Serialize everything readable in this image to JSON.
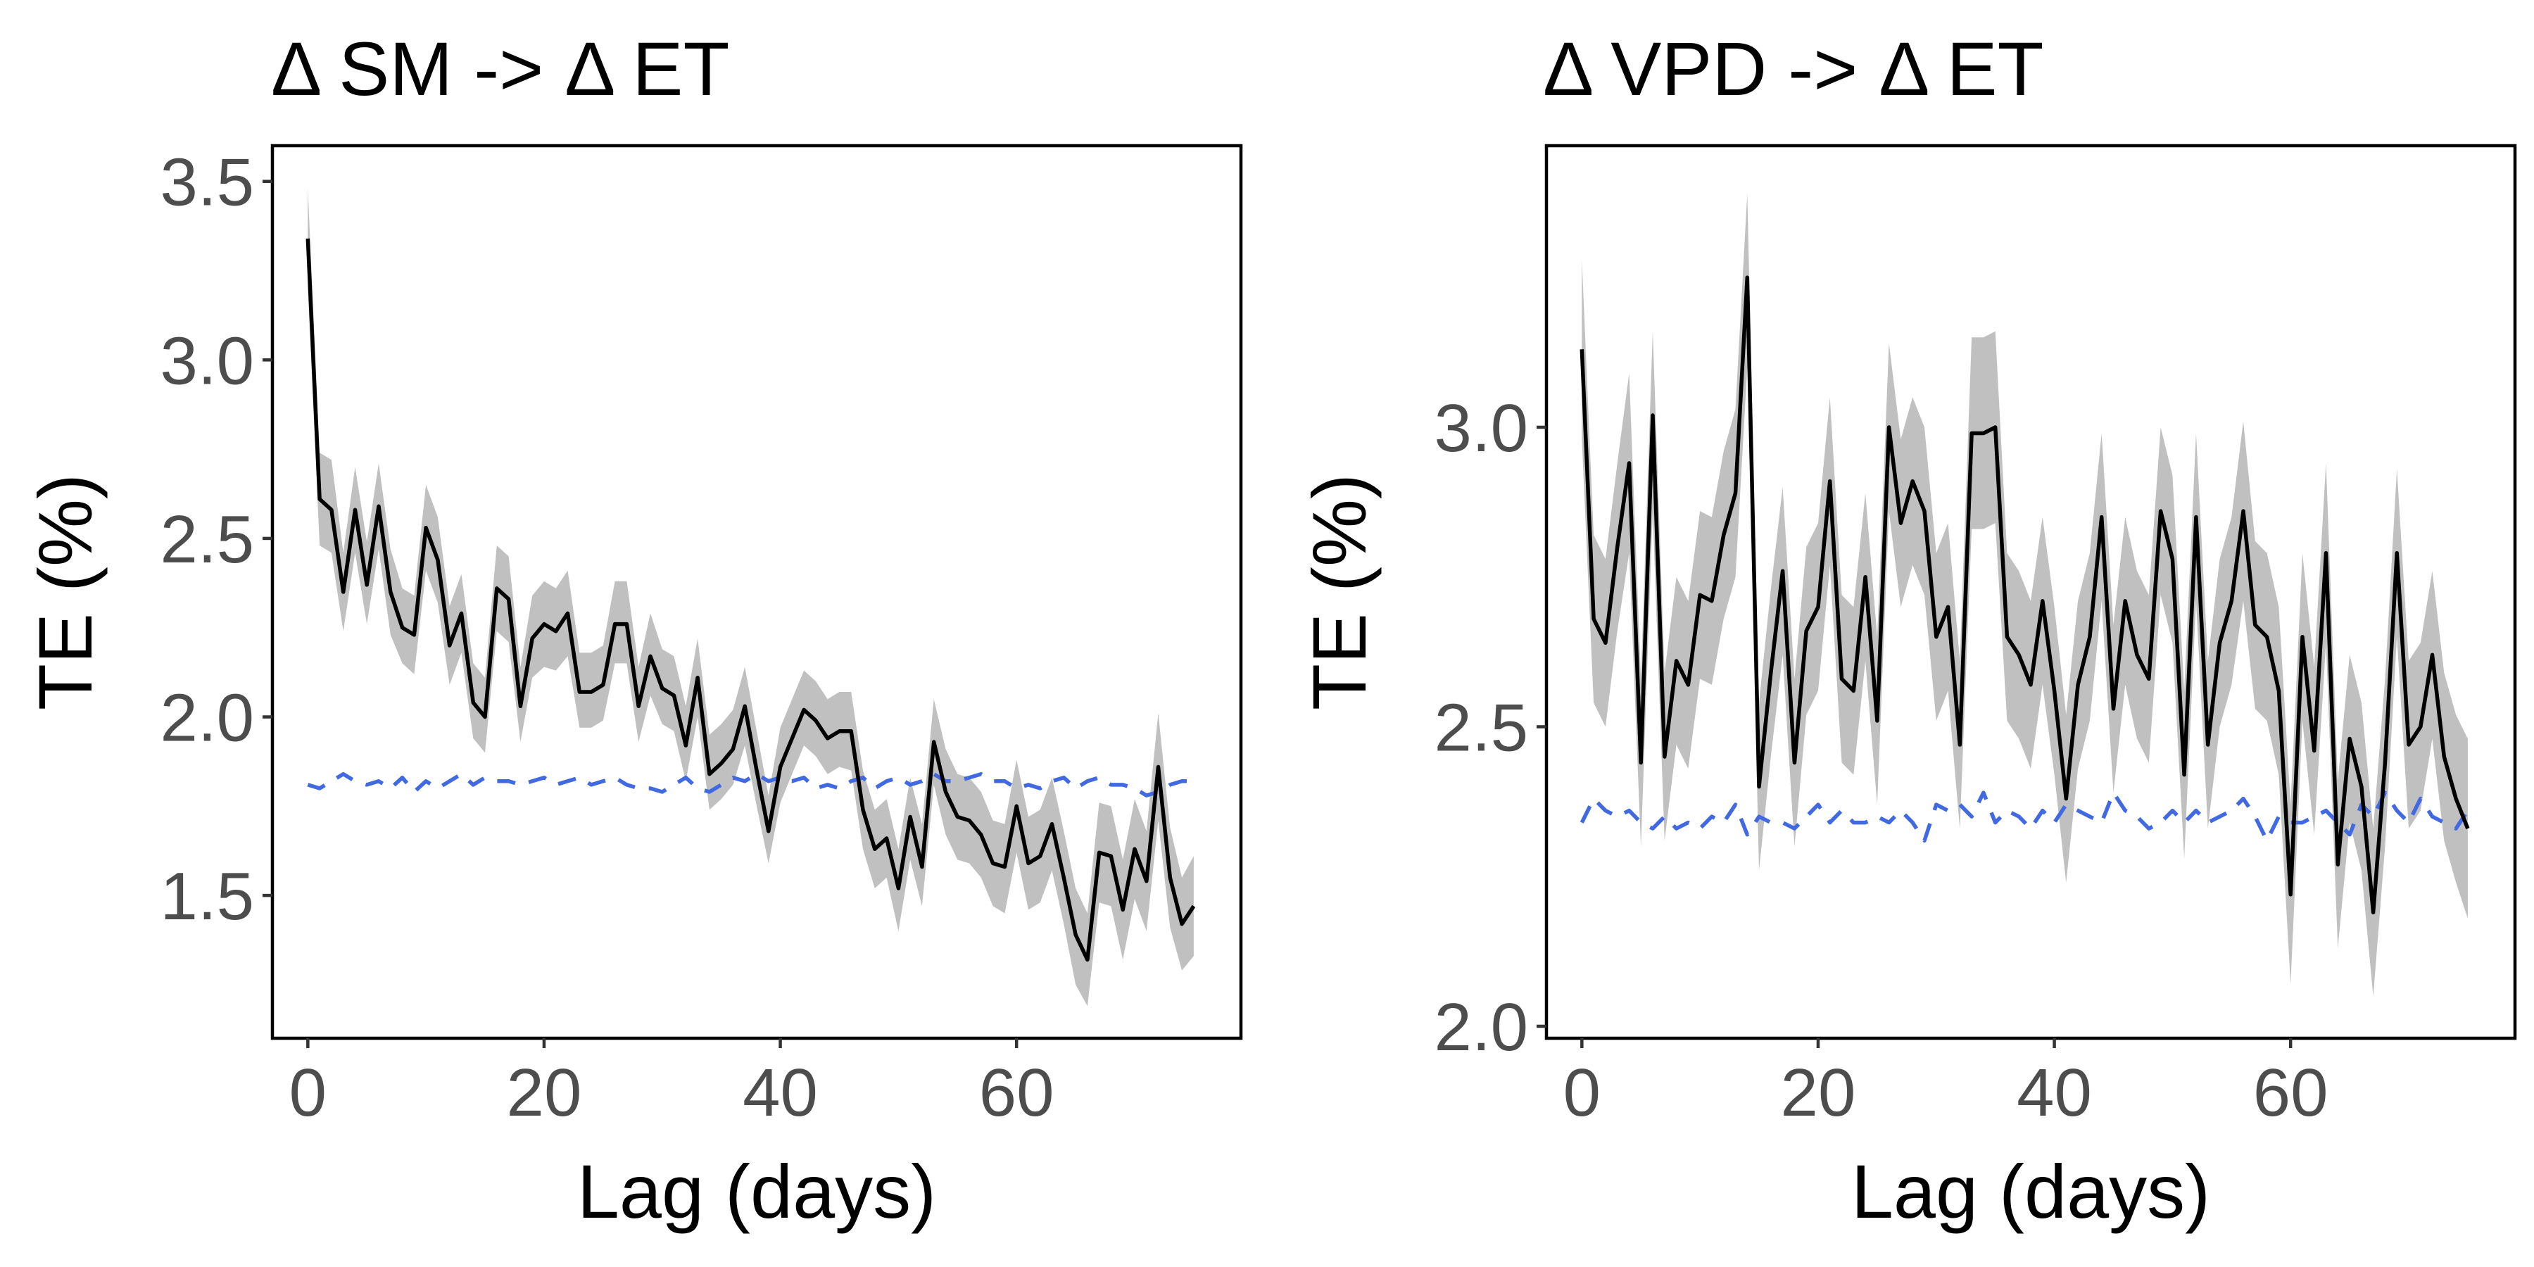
{
  "chart_data": [
    {
      "type": "line",
      "title": "Δ SM -> Δ ET",
      "xlabel": "Lag (days)",
      "ylabel": "TE (%)",
      "xlim": [
        -3,
        79
      ],
      "ylim": [
        1.1,
        3.6
      ],
      "xticks": [
        0,
        20,
        40,
        60
      ],
      "yticks": [
        1.5,
        2.0,
        2.5,
        3.0,
        3.5
      ],
      "ytick_labels": [
        "1.5",
        "2.0",
        "2.5",
        "3.0",
        "3.5"
      ],
      "grid": false,
      "x": [
        0,
        1,
        2,
        3,
        4,
        5,
        6,
        7,
        8,
        9,
        10,
        11,
        12,
        13,
        14,
        15,
        16,
        17,
        18,
        19,
        20,
        21,
        22,
        23,
        24,
        25,
        26,
        27,
        28,
        29,
        30,
        31,
        32,
        33,
        34,
        35,
        36,
        37,
        38,
        39,
        40,
        41,
        42,
        43,
        44,
        45,
        46,
        47,
        48,
        49,
        50,
        51,
        52,
        53,
        54,
        55,
        56,
        57,
        58,
        59,
        60,
        61,
        62,
        63,
        64,
        65,
        66,
        67,
        68,
        69,
        70,
        71,
        72,
        73,
        74,
        75
      ],
      "series": [
        {
          "style": "solid",
          "color": "#000000",
          "values": [
            3.34,
            2.61,
            2.58,
            2.35,
            2.58,
            2.37,
            2.59,
            2.35,
            2.25,
            2.23,
            2.53,
            2.44,
            2.2,
            2.29,
            2.04,
            2.0,
            2.36,
            2.33,
            2.03,
            2.22,
            2.26,
            2.24,
            2.29,
            2.07,
            2.07,
            2.09,
            2.26,
            2.26,
            2.03,
            2.17,
            2.08,
            2.06,
            1.92,
            2.11,
            1.84,
            1.87,
            1.91,
            2.03,
            1.85,
            1.68,
            1.86,
            1.94,
            2.02,
            1.99,
            1.94,
            1.96,
            1.96,
            1.74,
            1.63,
            1.66,
            1.52,
            1.72,
            1.58,
            1.93,
            1.79,
            1.72,
            1.71,
            1.67,
            1.59,
            1.58,
            1.75,
            1.59,
            1.61,
            1.7,
            1.55,
            1.39,
            1.32,
            1.62,
            1.61,
            1.46,
            1.63,
            1.54,
            1.86,
            1.55,
            1.42,
            1.47
          ]
        },
        {
          "style": "dashed",
          "color": "#4169e1",
          "values": [
            1.81,
            1.8,
            1.82,
            1.84,
            1.82,
            1.81,
            1.82,
            1.8,
            1.83,
            1.79,
            1.82,
            1.8,
            1.82,
            1.84,
            1.81,
            1.83,
            1.82,
            1.82,
            1.81,
            1.82,
            1.83,
            1.81,
            1.82,
            1.83,
            1.81,
            1.82,
            1.83,
            1.81,
            1.8,
            1.8,
            1.79,
            1.81,
            1.83,
            1.8,
            1.79,
            1.81,
            1.83,
            1.82,
            1.84,
            1.82,
            1.83,
            1.82,
            1.83,
            1.8,
            1.81,
            1.8,
            1.82,
            1.83,
            1.8,
            1.82,
            1.83,
            1.81,
            1.82,
            1.84,
            1.82,
            1.82,
            1.83,
            1.84,
            1.82,
            1.82,
            1.8,
            1.81,
            1.8,
            1.82,
            1.83,
            1.8,
            1.82,
            1.83,
            1.81,
            1.81,
            1.8,
            1.78,
            1.79,
            1.81,
            1.82,
            1.82
          ]
        }
      ],
      "band": {
        "color": "#c0c0c0",
        "lower": [
          3.2,
          2.48,
          2.46,
          2.24,
          2.46,
          2.26,
          2.47,
          2.23,
          2.15,
          2.12,
          2.41,
          2.32,
          2.09,
          2.18,
          1.94,
          1.9,
          2.24,
          2.21,
          1.93,
          2.11,
          2.14,
          2.13,
          2.17,
          1.97,
          1.97,
          1.99,
          2.15,
          2.15,
          1.93,
          2.06,
          1.98,
          1.96,
          1.82,
          2.0,
          1.74,
          1.77,
          1.81,
          1.92,
          1.75,
          1.59,
          1.76,
          1.84,
          1.92,
          1.89,
          1.84,
          1.86,
          1.85,
          1.63,
          1.52,
          1.55,
          1.4,
          1.6,
          1.47,
          1.81,
          1.67,
          1.6,
          1.59,
          1.55,
          1.47,
          1.45,
          1.62,
          1.46,
          1.48,
          1.57,
          1.42,
          1.25,
          1.19,
          1.48,
          1.47,
          1.32,
          1.49,
          1.4,
          1.71,
          1.41,
          1.29,
          1.33
        ],
        "upper": [
          3.48,
          2.74,
          2.72,
          2.46,
          2.7,
          2.49,
          2.71,
          2.47,
          2.36,
          2.34,
          2.65,
          2.56,
          2.31,
          2.4,
          2.15,
          2.11,
          2.48,
          2.45,
          2.14,
          2.34,
          2.38,
          2.36,
          2.41,
          2.18,
          2.18,
          2.2,
          2.38,
          2.38,
          2.14,
          2.29,
          2.19,
          2.17,
          2.03,
          2.22,
          1.95,
          1.98,
          2.02,
          2.14,
          1.96,
          1.78,
          1.97,
          2.05,
          2.13,
          2.1,
          2.05,
          2.07,
          2.07,
          1.85,
          1.74,
          1.77,
          1.63,
          1.83,
          1.7,
          2.05,
          1.91,
          1.84,
          1.83,
          1.79,
          1.71,
          1.7,
          1.88,
          1.72,
          1.74,
          1.83,
          1.68,
          1.52,
          1.45,
          1.76,
          1.75,
          1.6,
          1.77,
          1.68,
          2.01,
          1.69,
          1.55,
          1.61
        ]
      }
    },
    {
      "type": "line",
      "title": "Δ VPD -> Δ ET",
      "xlabel": "Lag (days)",
      "ylabel": "TE (%)",
      "xlim": [
        -3,
        79
      ],
      "ylim": [
        1.98,
        3.47
      ],
      "xticks": [
        0,
        20,
        40,
        60
      ],
      "yticks": [
        2.0,
        2.5,
        3.0
      ],
      "ytick_labels": [
        "2.0",
        "2.5",
        "3.0"
      ],
      "grid": false,
      "x": [
        0,
        1,
        2,
        3,
        4,
        5,
        6,
        7,
        8,
        9,
        10,
        11,
        12,
        13,
        14,
        15,
        16,
        17,
        18,
        19,
        20,
        21,
        22,
        23,
        24,
        25,
        26,
        27,
        28,
        29,
        30,
        31,
        32,
        33,
        34,
        35,
        36,
        37,
        38,
        39,
        40,
        41,
        42,
        43,
        44,
        45,
        46,
        47,
        48,
        49,
        50,
        51,
        52,
        53,
        54,
        55,
        56,
        57,
        58,
        59,
        60,
        61,
        62,
        63,
        64,
        65,
        66,
        67,
        68,
        69,
        70,
        71,
        72,
        73,
        74,
        75
      ],
      "series": [
        {
          "style": "solid",
          "color": "#000000",
          "values": [
            3.13,
            2.68,
            2.64,
            2.8,
            2.94,
            2.44,
            3.02,
            2.45,
            2.61,
            2.57,
            2.72,
            2.71,
            2.82,
            2.89,
            3.25,
            2.4,
            2.59,
            2.76,
            2.44,
            2.66,
            2.7,
            2.91,
            2.58,
            2.56,
            2.75,
            2.51,
            3.0,
            2.84,
            2.91,
            2.86,
            2.65,
            2.7,
            2.47,
            2.99,
            2.99,
            3.0,
            2.65,
            2.62,
            2.57,
            2.71,
            2.56,
            2.38,
            2.57,
            2.65,
            2.85,
            2.53,
            2.71,
            2.62,
            2.58,
            2.86,
            2.78,
            2.42,
            2.85,
            2.47,
            2.64,
            2.71,
            2.86,
            2.67,
            2.65,
            2.56,
            2.22,
            2.65,
            2.46,
            2.79,
            2.27,
            2.48,
            2.4,
            2.19,
            2.44,
            2.79,
            2.47,
            2.5,
            2.62,
            2.45,
            2.38,
            2.33
          ]
        },
        {
          "style": "dashed",
          "color": "#4169e1",
          "values": [
            2.34,
            2.38,
            2.36,
            2.35,
            2.36,
            2.34,
            2.33,
            2.35,
            2.33,
            2.34,
            2.33,
            2.35,
            2.34,
            2.37,
            2.32,
            2.35,
            2.34,
            2.34,
            2.33,
            2.35,
            2.37,
            2.34,
            2.36,
            2.34,
            2.34,
            2.35,
            2.34,
            2.36,
            2.34,
            2.31,
            2.37,
            2.36,
            2.37,
            2.35,
            2.39,
            2.34,
            2.36,
            2.35,
            2.33,
            2.36,
            2.34,
            2.37,
            2.36,
            2.35,
            2.34,
            2.39,
            2.36,
            2.35,
            2.33,
            2.34,
            2.36,
            2.34,
            2.36,
            2.34,
            2.35,
            2.36,
            2.38,
            2.35,
            2.31,
            2.35,
            2.34,
            2.34,
            2.35,
            2.36,
            2.34,
            2.32,
            2.37,
            2.35,
            2.39,
            2.36,
            2.34,
            2.38,
            2.35,
            2.34,
            2.33,
            2.36
          ]
        }
      ],
      "band": {
        "color": "#c0c0c0",
        "lower": [
          2.98,
          2.54,
          2.5,
          2.66,
          2.79,
          2.3,
          2.86,
          2.31,
          2.47,
          2.43,
          2.58,
          2.57,
          2.68,
          2.75,
          3.1,
          2.26,
          2.45,
          2.62,
          2.3,
          2.52,
          2.56,
          2.77,
          2.44,
          2.42,
          2.61,
          2.37,
          2.86,
          2.7,
          2.77,
          2.72,
          2.51,
          2.56,
          2.33,
          2.83,
          2.83,
          2.84,
          2.51,
          2.48,
          2.43,
          2.57,
          2.42,
          2.24,
          2.43,
          2.51,
          2.71,
          2.39,
          2.57,
          2.48,
          2.44,
          2.72,
          2.64,
          2.28,
          2.71,
          2.33,
          2.5,
          2.57,
          2.71,
          2.53,
          2.51,
          2.42,
          2.07,
          2.51,
          2.32,
          2.64,
          2.13,
          2.34,
          2.26,
          2.05,
          2.3,
          2.65,
          2.33,
          2.36,
          2.48,
          2.31,
          2.24,
          2.18
        ],
        "upper": [
          3.28,
          2.82,
          2.78,
          2.94,
          3.09,
          2.58,
          3.16,
          2.59,
          2.75,
          2.71,
          2.86,
          2.85,
          2.96,
          3.03,
          3.39,
          2.54,
          2.73,
          2.9,
          2.58,
          2.8,
          2.84,
          3.05,
          2.72,
          2.7,
          2.89,
          2.65,
          3.14,
          2.98,
          3.05,
          3.0,
          2.79,
          2.84,
          2.61,
          3.15,
          3.15,
          3.16,
          2.79,
          2.76,
          2.71,
          2.85,
          2.7,
          2.52,
          2.71,
          2.79,
          2.99,
          2.67,
          2.85,
          2.76,
          2.72,
          3.0,
          2.92,
          2.56,
          2.99,
          2.61,
          2.78,
          2.85,
          3.01,
          2.81,
          2.79,
          2.7,
          2.37,
          2.79,
          2.6,
          2.94,
          2.41,
          2.62,
          2.54,
          2.33,
          2.58,
          2.93,
          2.61,
          2.64,
          2.76,
          2.59,
          2.52,
          2.48
        ]
      }
    }
  ]
}
